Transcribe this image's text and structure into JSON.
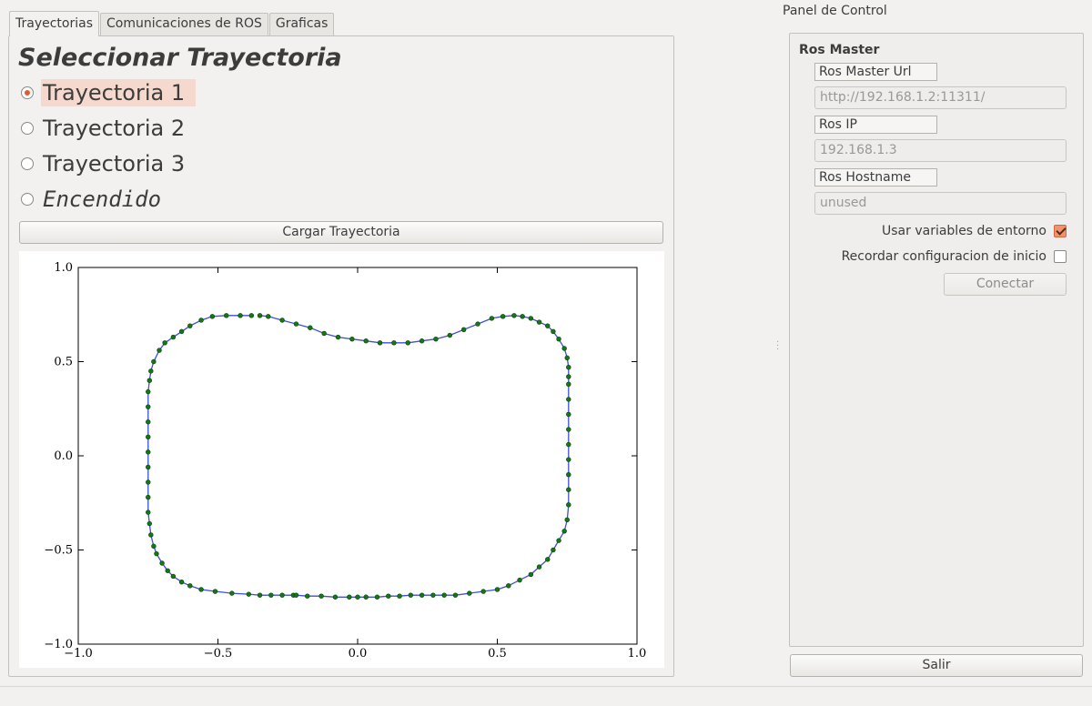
{
  "tabs": [
    {
      "label": "Trayectorias",
      "active": true
    },
    {
      "label": "Comunicaciones de ROS",
      "active": false
    },
    {
      "label": "Graficas",
      "active": false
    }
  ],
  "trajectory": {
    "title": "Seleccionar Trayectoria",
    "options": [
      {
        "label": "Trayectoria 1",
        "checked": true
      },
      {
        "label": "Trayectoria 2",
        "checked": false
      },
      {
        "label": "Trayectoria 3",
        "checked": false
      },
      {
        "label": "Encendido",
        "checked": false
      }
    ],
    "load_button": "Cargar Trayectoria"
  },
  "control_panel": {
    "title": "Panel de Control",
    "group_title": "Ros Master",
    "master_url_label": "Ros Master Url",
    "master_url_value": "http://192.168.1.2:11311/",
    "ip_label": "Ros IP",
    "ip_value": "192.168.1.3",
    "hostname_label": "Ros Hostname",
    "hostname_value": "unused",
    "use_env_label": "Usar variables de entorno",
    "use_env_checked": true,
    "remember_label": "Recordar configuracion de inicio",
    "remember_checked": false,
    "connect_button": "Conectar",
    "exit_button": "Salir"
  },
  "chart_data": {
    "type": "line",
    "title": "",
    "xlabel": "",
    "ylabel": "",
    "xlim": [
      -1.0,
      1.0
    ],
    "ylim": [
      -1.0,
      1.0
    ],
    "xticks": [
      "−1.0",
      "−0.5",
      "0.0",
      "0.5",
      "1.0"
    ],
    "yticks": [
      "−1.0",
      "−0.5",
      "0.0",
      "0.5",
      "1.0"
    ],
    "grid": false,
    "line_color": "#3f4fd6",
    "marker_color": "#137a13",
    "series": [
      {
        "x": [
          -0.38,
          -0.42,
          -0.47,
          -0.52,
          -0.56,
          -0.6,
          -0.63,
          -0.66,
          -0.69,
          -0.71,
          -0.73,
          -0.74,
          -0.745,
          -0.75,
          -0.75,
          -0.75,
          -0.75,
          -0.75,
          -0.75,
          -0.75,
          -0.75,
          -0.75,
          -0.745,
          -0.74,
          -0.73,
          -0.72,
          -0.7,
          -0.68,
          -0.66,
          -0.63,
          -0.6,
          -0.56,
          -0.51,
          -0.45,
          -0.39,
          -0.35,
          -0.31,
          -0.27,
          -0.23,
          -0.22,
          -0.18,
          -0.13,
          -0.08,
          -0.03,
          0.0,
          0.03,
          0.07,
          0.11,
          0.15,
          0.19,
          0.23,
          0.27,
          0.31,
          0.35,
          0.4,
          0.45,
          0.5,
          0.54,
          0.58,
          0.62,
          0.65,
          0.68,
          0.7,
          0.72,
          0.74,
          0.75,
          0.755,
          0.755,
          0.755,
          0.755,
          0.755,
          0.755,
          0.755,
          0.755,
          0.755,
          0.755,
          0.755,
          0.75,
          0.74,
          0.72,
          0.7,
          0.68,
          0.65,
          0.62,
          0.59,
          0.56,
          0.52,
          0.48,
          0.43,
          0.38,
          0.33,
          0.28,
          0.23,
          0.18,
          0.13,
          0.08,
          0.03,
          -0.02,
          -0.07,
          -0.12,
          -0.17,
          -0.22,
          -0.27,
          -0.32,
          -0.35
        ],
        "y": [
          0.745,
          0.745,
          0.745,
          0.74,
          0.72,
          0.69,
          0.66,
          0.63,
          0.6,
          0.56,
          0.5,
          0.45,
          0.4,
          0.34,
          0.26,
          0.18,
          0.1,
          0.02,
          -0.06,
          -0.14,
          -0.22,
          -0.3,
          -0.36,
          -0.42,
          -0.48,
          -0.52,
          -0.57,
          -0.61,
          -0.64,
          -0.67,
          -0.69,
          -0.71,
          -0.72,
          -0.73,
          -0.735,
          -0.74,
          -0.74,
          -0.74,
          -0.74,
          -0.74,
          -0.745,
          -0.745,
          -0.75,
          -0.75,
          -0.75,
          -0.75,
          -0.75,
          -0.745,
          -0.745,
          -0.74,
          -0.74,
          -0.74,
          -0.74,
          -0.74,
          -0.73,
          -0.72,
          -0.71,
          -0.69,
          -0.66,
          -0.63,
          -0.59,
          -0.55,
          -0.5,
          -0.45,
          -0.4,
          -0.34,
          -0.26,
          -0.18,
          -0.1,
          -0.02,
          0.06,
          0.14,
          0.22,
          0.3,
          0.38,
          0.42,
          0.47,
          0.52,
          0.57,
          0.62,
          0.66,
          0.69,
          0.71,
          0.73,
          0.74,
          0.745,
          0.74,
          0.73,
          0.7,
          0.67,
          0.64,
          0.62,
          0.61,
          0.6,
          0.6,
          0.6,
          0.61,
          0.62,
          0.63,
          0.65,
          0.68,
          0.7,
          0.72,
          0.74,
          0.745
        ]
      }
    ]
  }
}
